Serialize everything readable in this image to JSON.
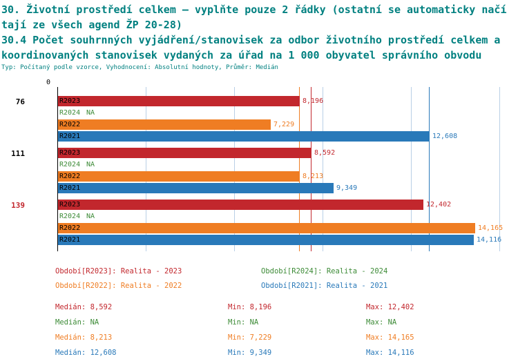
{
  "header": {
    "title_color": "#008080",
    "title_lines": [
      "30. Životní prostředí celkem – vyplňte pouze 2 řádky (ostatní se automaticky načí",
      "tají ze všech agend ŽP 20-28)",
      "30.4 Počet souhrnných vyjádření/stanovisek za odbor životního prostředí celkem a",
      "koordinovaných stanovisek vydaných za úřad na 1 000 obyvatel správního obvodu"
    ],
    "subtitle": "Typ: Počítaný podle vzorce, Vyhodnocení: Absolutní hodnoty, Průměr: Medián"
  },
  "chart_data": {
    "type": "bar",
    "orientation": "horizontal",
    "axis_origin_label": "0",
    "xlim": [
      0,
      15000
    ],
    "gridline_values": [
      3000,
      6000,
      9000,
      12000,
      15000
    ],
    "legend_position": "bottom",
    "row_series": [
      "R2023",
      "R2024",
      "R2022",
      "R2021"
    ],
    "series_colors": {
      "R2023": "#c2272d",
      "R2024": "#3d8b37",
      "R2022": "#ef7d23",
      "R2021": "#2979b9"
    },
    "groups": [
      {
        "label": "76",
        "label_color": "#000000",
        "bars": [
          {
            "series": "R2023",
            "value": 8196,
            "display": "8,196"
          },
          {
            "series": "R2024",
            "value": null,
            "display": "NA"
          },
          {
            "series": "R2022",
            "value": 7229,
            "display": "7,229"
          },
          {
            "series": "R2021",
            "value": 12608,
            "display": "12,608"
          }
        ]
      },
      {
        "label": "111",
        "label_color": "#000000",
        "bars": [
          {
            "series": "R2023",
            "value": 8592,
            "display": "8,592"
          },
          {
            "series": "R2024",
            "value": null,
            "display": "NA"
          },
          {
            "series": "R2022",
            "value": 8213,
            "display": "8,213"
          },
          {
            "series": "R2021",
            "value": 9349,
            "display": "9,349"
          }
        ]
      },
      {
        "label": "139",
        "label_color": "#c2272d",
        "bars": [
          {
            "series": "R2023",
            "value": 12402,
            "display": "12,402"
          },
          {
            "series": "R2024",
            "value": null,
            "display": "NA"
          },
          {
            "series": "R2022",
            "value": 14165,
            "display": "14,165"
          },
          {
            "series": "R2021",
            "value": 14116,
            "display": "14,116"
          }
        ]
      }
    ],
    "median_lines": [
      {
        "series": "R2023",
        "value": 8592,
        "color": "#c2272d"
      },
      {
        "series": "R2022",
        "value": 8213,
        "color": "#ef7d23"
      },
      {
        "series": "R2021",
        "value": 12608,
        "color": "#2979b9"
      }
    ]
  },
  "legend": {
    "items": [
      {
        "text": "Období[R2023]: Realita - 2023",
        "color": "#c2272d"
      },
      {
        "text": "Období[R2022]: Realita - 2022",
        "color": "#ef7d23"
      },
      {
        "text": "Období[R2024]: Realita - 2024",
        "color": "#3d8b37"
      },
      {
        "text": "Období[R2021]: Realita - 2021",
        "color": "#2979b9"
      }
    ]
  },
  "stats": {
    "rows": [
      {
        "series": "R2023",
        "color": "#c2272d",
        "cells": [
          "Medián: 8,592",
          "Min: 8,196",
          "Max: 12,402"
        ]
      },
      {
        "series": "R2024",
        "color": "#3d8b37",
        "cells": [
          "Medián: NA",
          "Min: NA",
          "Max: NA"
        ]
      },
      {
        "series": "R2022",
        "color": "#ef7d23",
        "cells": [
          "Medián: 8,213",
          "Min: 7,229",
          "Max: 14,165"
        ]
      },
      {
        "series": "R2021",
        "color": "#2979b9",
        "cells": [
          "Medián: 12,608",
          "Min: 9,349",
          "Max: 14,116"
        ]
      }
    ]
  }
}
